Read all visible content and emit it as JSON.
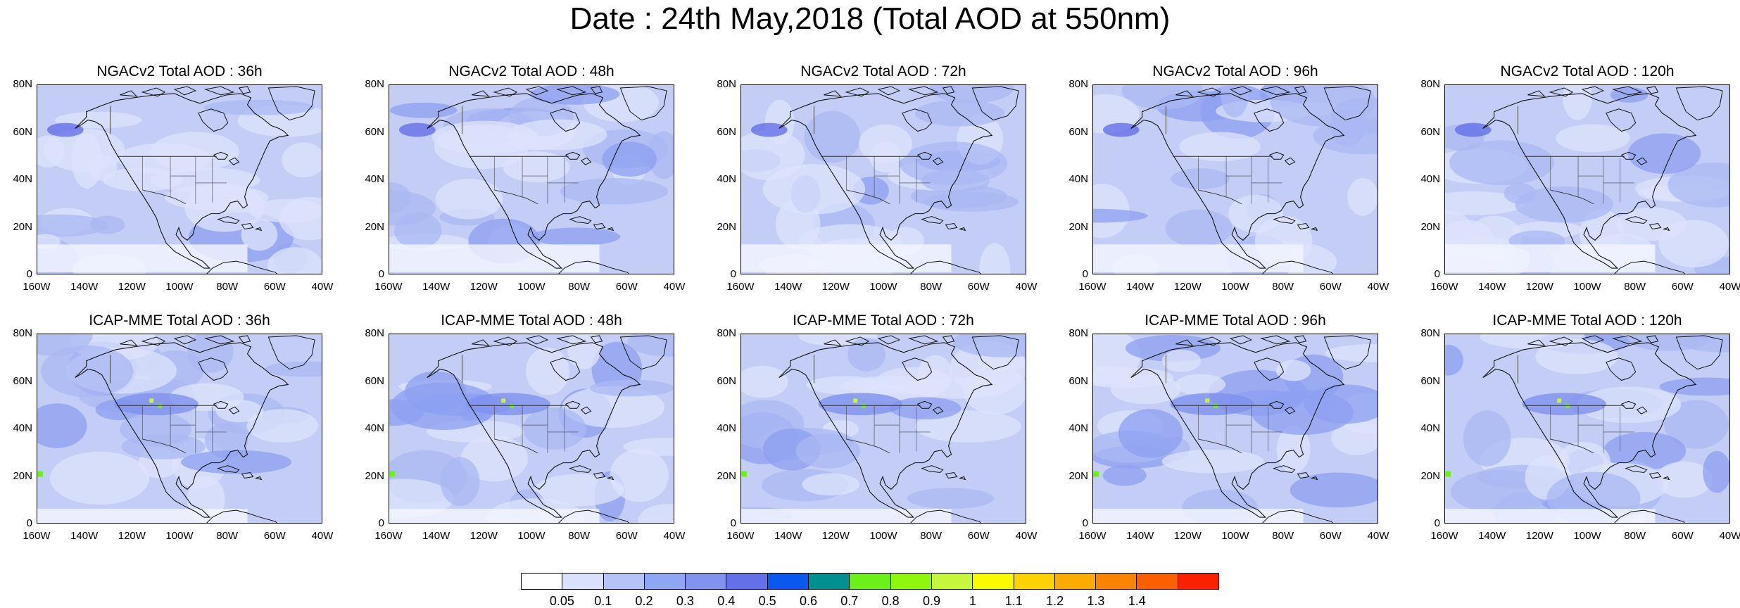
{
  "main_title": "Date : 24th May,2018 (Total AOD at 550nm)",
  "lat_labels": [
    "80N",
    "60N",
    "40N",
    "20N",
    "0"
  ],
  "lon_labels": [
    "160W",
    "140W",
    "120W",
    "100W",
    "80W",
    "60W",
    "40W"
  ],
  "panels": [
    {
      "title": "NGACv2 Total AOD : 36h"
    },
    {
      "title": "NGACv2 Total AOD : 48h"
    },
    {
      "title": "NGACv2 Total AOD : 72h"
    },
    {
      "title": "NGACv2 Total AOD : 96h"
    },
    {
      "title": "NGACv2 Total AOD : 120h"
    },
    {
      "title": "ICAP-MME Total AOD : 36h"
    },
    {
      "title": "ICAP-MME Total AOD : 48h"
    },
    {
      "title": "ICAP-MME Total AOD : 72h"
    },
    {
      "title": "ICAP-MME Total AOD : 96h"
    },
    {
      "title": "ICAP-MME Total AOD : 120h"
    }
  ],
  "colorbar": {
    "colors": [
      "#ffffff",
      "#d9e1fc",
      "#b4c4f8",
      "#8ea6f3",
      "#8193ef",
      "#6470e8",
      "#0b58ee",
      "#009090",
      "#6cf01a",
      "#8ef70b",
      "#c7f73b",
      "#fafa00",
      "#fcd200",
      "#fcac00",
      "#fa8400",
      "#fa6000",
      "#fa2000"
    ],
    "labels": [
      "0.05",
      "0.1",
      "0.2",
      "0.3",
      "0.4",
      "0.5",
      "0.6",
      "0.7",
      "0.8",
      "0.9",
      "1",
      "1.1",
      "1.2",
      "1.3",
      "1.4"
    ]
  }
}
